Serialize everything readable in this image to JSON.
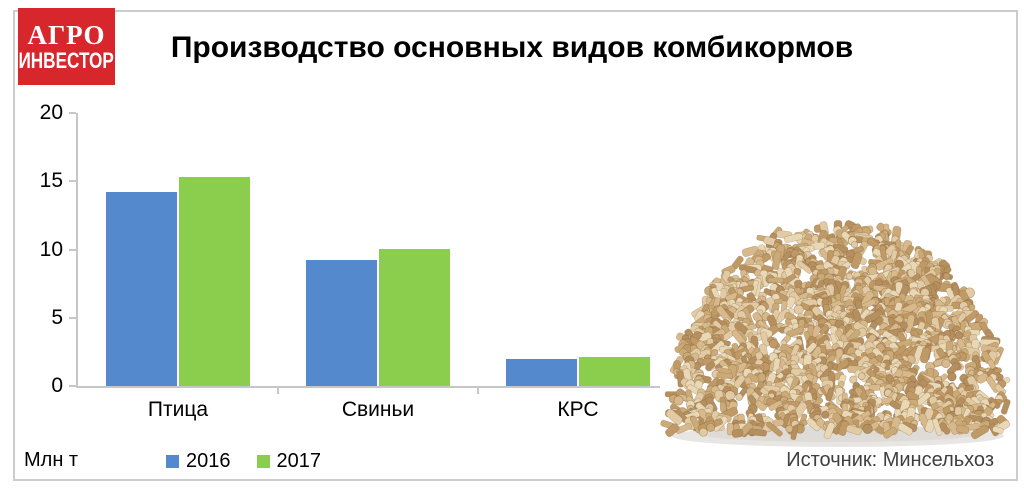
{
  "logo": {
    "line1": "АГРО",
    "line2": "ИНВЕСТОР",
    "background_color": "#d7262c",
    "text_color": "#ffffff"
  },
  "title": "Производство основных видов комбикормов",
  "units_label": "Млн т",
  "source_label": "Источник: Минсельхоз",
  "legend": [
    {
      "label": "2016",
      "color": "#548ACD"
    },
    {
      "label": "2017",
      "color": "#8BCE4D"
    }
  ],
  "chart_data": {
    "type": "bar",
    "categories": [
      "Птица",
      "Свиньи",
      "КРС"
    ],
    "series": [
      {
        "name": "2016",
        "color": "#548ACD",
        "values": [
          14.2,
          9.2,
          2.0
        ]
      },
      {
        "name": "2017",
        "color": "#8BCE4D",
        "values": [
          15.3,
          10.0,
          2.1
        ]
      }
    ],
    "title": "Производство основных видов комбикормов",
    "xlabel": "",
    "ylabel": "Млн т",
    "ylim": [
      0,
      20
    ],
    "yticks": [
      0,
      5,
      10,
      15,
      20
    ],
    "grid": false,
    "legend_position": "bottom",
    "axis_color": "#c6c6c6"
  },
  "illustration": {
    "name": "feed-pellets-pile",
    "palette": [
      "#e2cba4",
      "#d7b98c",
      "#cbaa77",
      "#c09a66",
      "#e9d8b6",
      "#b68f5e"
    ],
    "shadow_color": "#d6d2cb"
  }
}
